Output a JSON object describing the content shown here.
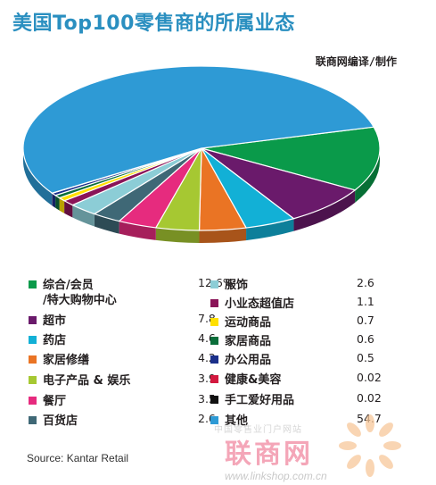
{
  "title": "美国Top100零售商的所属业态",
  "credit": "联商网编译/制作",
  "source": "Source: Kantar Retail",
  "watermark": {
    "top_text": "中国零售业门户网站",
    "logo_text": "联商网",
    "url": "www.linkshop.com.cn"
  },
  "chart_data": {
    "type": "pie",
    "title": "美国Top100零售商的所属业态",
    "categories": [
      "综合/会员/特大购物中心",
      "超市",
      "药店",
      "家居修缮",
      "电子产品 & 娱乐",
      "餐厅",
      "百货店",
      "服饰",
      "小业态超值店",
      "运动商品",
      "家居商品",
      "办公用品",
      "健康&美容",
      "手工爱好用品",
      "其他"
    ],
    "values": [
      12.6,
      7.8,
      4.6,
      4.2,
      3.9,
      3.5,
      2.6,
      2.6,
      1.1,
      0.7,
      0.6,
      0.5,
      0.02,
      0.02,
      54.7
    ],
    "value_labels": [
      "12.6%",
      "7.8",
      "4.6",
      "4.2",
      "3.9",
      "3.5",
      "2.6",
      "2.6",
      "1.1",
      "0.7",
      "0.6",
      "0.5",
      "0.02",
      "0.02",
      "54.7"
    ],
    "colors": [
      "#0a9a4a",
      "#6a1a6b",
      "#12b0d6",
      "#ea7424",
      "#a6c832",
      "#e62b7e",
      "#3f6876",
      "#8ccdd6",
      "#8a1458",
      "#ffe000",
      "#0b6e3a",
      "#1a2f8a",
      "#d3193f",
      "#111111",
      "#2e9ad5"
    ],
    "legend_columns": [
      {
        "items": [
          0,
          1,
          2,
          3,
          4,
          5,
          6
        ]
      },
      {
        "items": [
          7,
          8,
          9,
          10,
          11,
          12,
          13,
          14
        ]
      }
    ]
  }
}
